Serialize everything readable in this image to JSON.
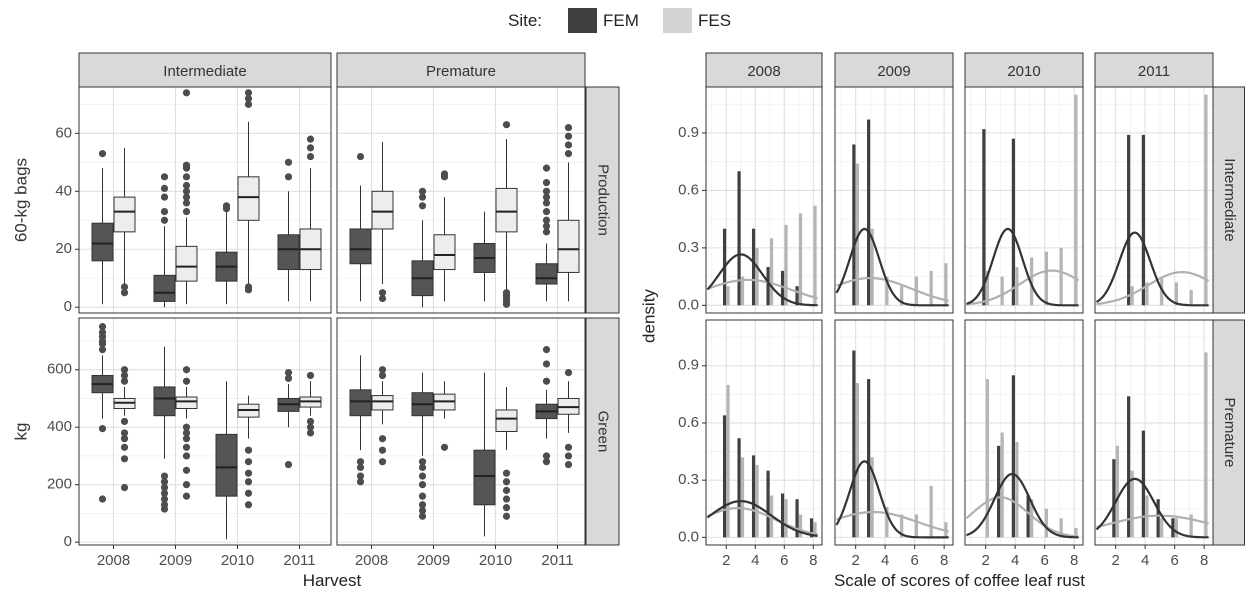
{
  "legend": {
    "title": "Site:",
    "items": [
      {
        "label": "FEM",
        "color": "#404040"
      },
      {
        "label": "FES",
        "color": "#d3d3d3"
      }
    ]
  },
  "chart_data": [
    {
      "type": "box",
      "xlabel": "Harvest",
      "categories": [
        "2008",
        "2009",
        "2010",
        "2011"
      ],
      "columns": [
        "Intermediate",
        "Premature"
      ],
      "rows": [
        {
          "name": "Production",
          "ylabel": "60-kg bags",
          "ylim": [
            -2,
            76
          ],
          "yticks": [
            0,
            20,
            40,
            60
          ]
        },
        {
          "name": "Green",
          "ylabel": "kg",
          "ylim": [
            -10,
            780
          ],
          "yticks": [
            0,
            200,
            400,
            600
          ]
        }
      ],
      "series_colors": {
        "FEM": "#555555",
        "FES": "#ededed"
      },
      "panels": [
        {
          "row": "Production",
          "column": "Intermediate",
          "boxes": [
            {
              "year": "2008",
              "site": "FEM",
              "min": 1,
              "q1": 16,
              "median": 22,
              "q3": 29,
              "max": 48,
              "outliers": [
                53
              ]
            },
            {
              "year": "2008",
              "site": "FES",
              "min": 8,
              "q1": 26,
              "median": 33,
              "q3": 38,
              "max": 55,
              "outliers": [
                5,
                7
              ]
            },
            {
              "year": "2009",
              "site": "FEM",
              "min": 0,
              "q1": 2,
              "median": 5,
              "q3": 11,
              "max": 28,
              "outliers": [
                30,
                33,
                38,
                41,
                45
              ]
            },
            {
              "year": "2009",
              "site": "FES",
              "min": 1,
              "q1": 9,
              "median": 14,
              "q3": 21,
              "max": 31,
              "outliers": [
                33,
                36,
                38,
                40,
                42,
                45,
                48,
                49,
                74
              ]
            },
            {
              "year": "2010",
              "site": "FEM",
              "min": 1,
              "q1": 9,
              "median": 14,
              "q3": 19,
              "max": 33,
              "outliers": [
                34,
                35
              ]
            },
            {
              "year": "2010",
              "site": "FES",
              "min": 8,
              "q1": 30,
              "median": 38,
              "q3": 45,
              "max": 64,
              "outliers": [
                6,
                7,
                70,
                72,
                74
              ]
            },
            {
              "year": "2011",
              "site": "FEM",
              "min": 2,
              "q1": 13,
              "median": 20,
              "q3": 25,
              "max": 40,
              "outliers": [
                45,
                50
              ]
            },
            {
              "year": "2011",
              "site": "FES",
              "min": 2,
              "q1": 13,
              "median": 20,
              "q3": 27,
              "max": 48,
              "outliers": [
                52,
                55,
                58
              ]
            }
          ]
        },
        {
          "row": "Production",
          "column": "Premature",
          "boxes": [
            {
              "year": "2008",
              "site": "FEM",
              "min": 2,
              "q1": 15,
              "median": 20,
              "q3": 27,
              "max": 42,
              "outliers": [
                52
              ]
            },
            {
              "year": "2008",
              "site": "FES",
              "min": 8,
              "q1": 27,
              "median": 33,
              "q3": 40,
              "max": 57,
              "outliers": [
                3,
                5
              ]
            },
            {
              "year": "2009",
              "site": "FEM",
              "min": 0,
              "q1": 4,
              "median": 10,
              "q3": 16,
              "max": 30,
              "outliers": [
                35,
                38,
                40
              ]
            },
            {
              "year": "2009",
              "site": "FES",
              "min": 2,
              "q1": 13,
              "median": 18,
              "q3": 25,
              "max": 38,
              "outliers": [
                45,
                46
              ]
            },
            {
              "year": "2010",
              "site": "FEM",
              "min": 2,
              "q1": 12,
              "median": 17,
              "q3": 22,
              "max": 33,
              "outliers": []
            },
            {
              "year": "2010",
              "site": "FES",
              "min": 6,
              "q1": 26,
              "median": 33,
              "q3": 41,
              "max": 58,
              "outliers": [
                1,
                2,
                3,
                4,
                5,
                63
              ]
            },
            {
              "year": "2011",
              "site": "FEM",
              "min": 2,
              "q1": 8,
              "median": 10,
              "q3": 15,
              "max": 22,
              "outliers": [
                26,
                28,
                30,
                33,
                36,
                38,
                40,
                43,
                48
              ]
            },
            {
              "year": "2011",
              "site": "FES",
              "min": 2,
              "q1": 12,
              "median": 20,
              "q3": 30,
              "max": 50,
              "outliers": [
                53,
                56,
                59,
                62
              ]
            }
          ]
        },
        {
          "row": "Green",
          "column": "Intermediate",
          "boxes": [
            {
              "year": "2008",
              "site": "FEM",
              "min": 430,
              "q1": 520,
              "median": 550,
              "q3": 580,
              "max": 650,
              "outliers": [
                150,
                395,
                670,
                690,
                700,
                715,
                730,
                750
              ]
            },
            {
              "year": "2008",
              "site": "FES",
              "min": 440,
              "q1": 465,
              "median": 485,
              "q3": 500,
              "max": 540,
              "outliers": [
                190,
                290,
                330,
                360,
                380,
                420,
                560,
                580,
                600
              ]
            },
            {
              "year": "2009",
              "site": "FEM",
              "min": 290,
              "q1": 440,
              "median": 500,
              "q3": 540,
              "max": 680,
              "outliers": [
                115,
                130,
                150,
                170,
                190,
                210,
                230
              ]
            },
            {
              "year": "2009",
              "site": "FES",
              "min": 430,
              "q1": 465,
              "median": 490,
              "q3": 505,
              "max": 540,
              "outliers": [
                160,
                200,
                250,
                300,
                330,
                360,
                380,
                400,
                560,
                600
              ]
            },
            {
              "year": "2010",
              "site": "FEM",
              "min": 10,
              "q1": 160,
              "median": 260,
              "q3": 375,
              "max": 560,
              "outliers": []
            },
            {
              "year": "2010",
              "site": "FES",
              "min": 360,
              "q1": 435,
              "median": 460,
              "q3": 480,
              "max": 510,
              "outliers": [
                130,
                170,
                210,
                240,
                280,
                320
              ]
            },
            {
              "year": "2011",
              "site": "FEM",
              "min": 400,
              "q1": 455,
              "median": 480,
              "q3": 500,
              "max": 550,
              "outliers": [
                270,
                570,
                590
              ]
            },
            {
              "year": "2011",
              "site": "FES",
              "min": 440,
              "q1": 470,
              "median": 490,
              "q3": 505,
              "max": 560,
              "outliers": [
                380,
                400,
                420,
                580
              ]
            }
          ]
        },
        {
          "row": "Green",
          "column": "Premature",
          "boxes": [
            {
              "year": "2008",
              "site": "FEM",
              "min": 320,
              "q1": 440,
              "median": 490,
              "q3": 530,
              "max": 650,
              "outliers": [
                210,
                230,
                260,
                280
              ]
            },
            {
              "year": "2008",
              "site": "FES",
              "min": 410,
              "q1": 460,
              "median": 490,
              "q3": 510,
              "max": 560,
              "outliers": [
                280,
                320,
                360,
                580,
                600
              ]
            },
            {
              "year": "2009",
              "site": "FEM",
              "min": 300,
              "q1": 440,
              "median": 480,
              "q3": 520,
              "max": 590,
              "outliers": [
                90,
                110,
                130,
                160,
                200,
                230,
                260,
                280
              ]
            },
            {
              "year": "2009",
              "site": "FES",
              "min": 430,
              "q1": 460,
              "median": 490,
              "q3": 515,
              "max": 560,
              "outliers": [
                330
              ]
            },
            {
              "year": "2010",
              "site": "FEM",
              "min": 20,
              "q1": 130,
              "median": 230,
              "q3": 320,
              "max": 590,
              "outliers": []
            },
            {
              "year": "2010",
              "site": "FES",
              "min": 320,
              "q1": 385,
              "median": 430,
              "q3": 460,
              "max": 540,
              "outliers": [
                90,
                120,
                150,
                180,
                210,
                240
              ]
            },
            {
              "year": "2011",
              "site": "FEM",
              "min": 360,
              "q1": 430,
              "median": 455,
              "q3": 480,
              "max": 530,
              "outliers": [
                280,
                300,
                560,
                620,
                670
              ]
            },
            {
              "year": "2011",
              "site": "FES",
              "min": 380,
              "q1": 445,
              "median": 470,
              "q3": 500,
              "max": 560,
              "outliers": [
                270,
                300,
                330,
                590
              ]
            }
          ]
        }
      ]
    },
    {
      "type": "histogram-density",
      "xlabel": "Scale of scores of coffee leaf rust",
      "ylabel": "density",
      "columns": [
        "2008",
        "2009",
        "2010",
        "2011"
      ],
      "rows": [
        "Intermediate",
        "Premature"
      ],
      "xlim": [
        0.6,
        8.6
      ],
      "xticks": [
        2,
        4,
        6,
        8
      ],
      "ylim": [
        -0.04,
        1.14
      ],
      "yticks": [
        0.0,
        0.3,
        0.6,
        0.9
      ],
      "ytick_labels": [
        "0.0",
        "0.3",
        "0.6",
        "0.9"
      ],
      "bar_colors": {
        "FEM": "#404040",
        "FES": "#b5b5b5"
      },
      "curve_colors": {
        "FEM": "#333333",
        "FES": "#b0b0b0"
      },
      "panels": [
        {
          "row": "Intermediate",
          "column": "2008",
          "FEM": {
            "bars": [
              0.0,
              0.4,
              0.7,
              0.4,
              0.2,
              0.18,
              0.1,
              0.0
            ],
            "curve": {
              "mean": 3.0,
              "sd": 1.5
            }
          },
          "FES": {
            "bars": [
              0.0,
              0.1,
              0.15,
              0.3,
              0.35,
              0.42,
              0.48,
              0.52
            ],
            "curve": {
              "mean": 3.5,
              "sd": 3.0
            }
          }
        },
        {
          "row": "Intermediate",
          "column": "2009",
          "FEM": {
            "bars": [
              0.0,
              0.84,
              0.97,
              0.0,
              0.0,
              0.0,
              0.0,
              0.0
            ],
            "curve": {
              "mean": 2.6,
              "sd": 1.0
            }
          },
          "FES": {
            "bars": [
              0.0,
              0.74,
              0.4,
              0.15,
              0.1,
              0.15,
              0.18,
              0.22
            ],
            "curve": {
              "mean": 3.0,
              "sd": 2.8
            }
          }
        },
        {
          "row": "Intermediate",
          "column": "2010",
          "FEM": {
            "bars": [
              0.0,
              0.92,
              0.0,
              0.87,
              0.0,
              0.0,
              0.0,
              0.0
            ],
            "curve": {
              "mean": 3.5,
              "sd": 1.0
            }
          },
          "FES": {
            "bars": [
              0.0,
              0.18,
              0.15,
              0.2,
              0.25,
              0.28,
              0.3,
              1.1
            ],
            "curve": {
              "mean": 6.5,
              "sd": 2.2
            }
          }
        },
        {
          "row": "Intermediate",
          "column": "2011",
          "FEM": {
            "bars": [
              0.0,
              0.0,
              0.89,
              0.89,
              0.0,
              0.0,
              0.0,
              0.0
            ],
            "curve": {
              "mean": 3.3,
              "sd": 1.05
            }
          },
          "FES": {
            "bars": [
              0.0,
              0.0,
              0.1,
              0.12,
              0.14,
              0.12,
              0.08,
              1.1
            ],
            "curve": {
              "mean": 6.5,
              "sd": 2.3
            }
          }
        },
        {
          "row": "Premature",
          "column": "2008",
          "FEM": {
            "bars": [
              0.0,
              0.64,
              0.52,
              0.43,
              0.35,
              0.23,
              0.2,
              0.1
            ],
            "curve": {
              "mean": 3.0,
              "sd": 2.1
            }
          },
          "FES": {
            "bars": [
              0.0,
              0.8,
              0.42,
              0.38,
              0.22,
              0.2,
              0.12,
              0.08
            ],
            "curve": {
              "mean": 2.8,
              "sd": 2.6
            }
          }
        },
        {
          "row": "Premature",
          "column": "2009",
          "FEM": {
            "bars": [
              0.0,
              0.98,
              0.83,
              0.0,
              0.0,
              0.0,
              0.0,
              0.0
            ],
            "curve": {
              "mean": 2.6,
              "sd": 1.0
            }
          },
          "FES": {
            "bars": [
              0.0,
              0.81,
              0.42,
              0.16,
              0.12,
              0.12,
              0.27,
              0.08
            ],
            "curve": {
              "mean": 3.2,
              "sd": 3.0
            }
          }
        },
        {
          "row": "Premature",
          "column": "2010",
          "FEM": {
            "bars": [
              0.0,
              0.0,
              0.48,
              0.85,
              0.22,
              0.0,
              0.0,
              0.0
            ],
            "curve": {
              "mean": 3.8,
              "sd": 1.2
            }
          },
          "FES": {
            "bars": [
              0.0,
              0.83,
              0.55,
              0.5,
              0.2,
              0.15,
              0.1,
              0.05
            ],
            "curve": {
              "mean": 3.0,
              "sd": 1.9
            }
          }
        },
        {
          "row": "Premature",
          "column": "2011",
          "FEM": {
            "bars": [
              0.0,
              0.41,
              0.74,
              0.56,
              0.2,
              0.1,
              0.0,
              0.0
            ],
            "curve": {
              "mean": 3.3,
              "sd": 1.3
            }
          },
          "FES": {
            "bars": [
              0.0,
              0.48,
              0.35,
              0.22,
              0.1,
              0.1,
              0.12,
              0.97
            ],
            "curve": {
              "mean": 5.0,
              "sd": 3.5
            }
          }
        }
      ]
    }
  ]
}
